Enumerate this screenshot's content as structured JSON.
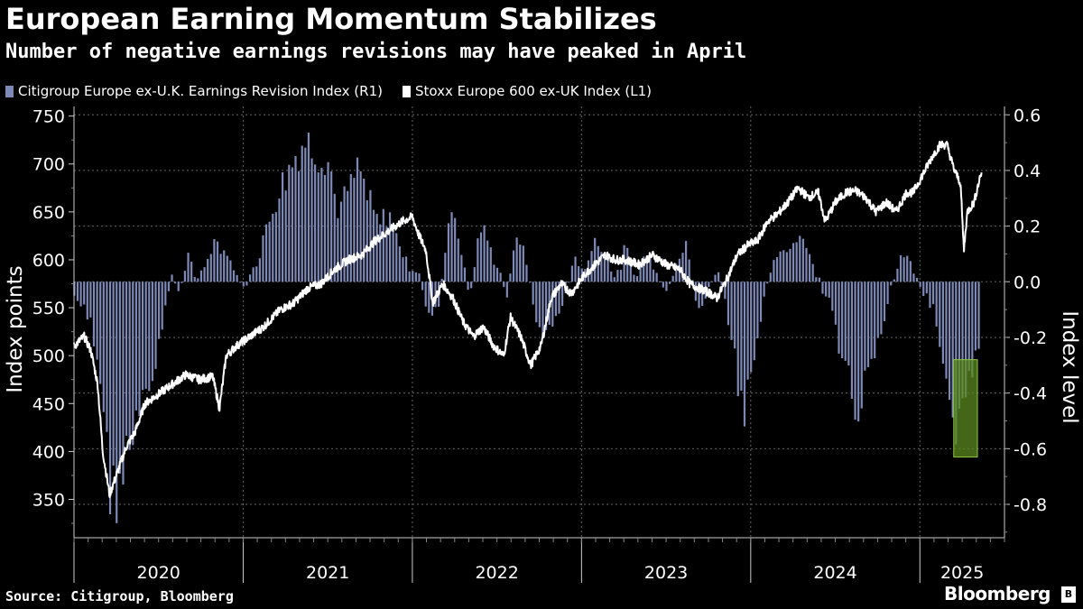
{
  "title": "European Earning Momentum Stabilizes",
  "subtitle": "Number of negative earnings revisions may have peaked in April",
  "source": "Source: Citigroup, Bloomberg",
  "brand": "Bloomberg",
  "brand_icon": "B",
  "colors": {
    "bars": "#7d8ab8",
    "line": "#ffffff",
    "highlight_fill": "#5a8a1e",
    "highlight_stroke": "#8dc63f",
    "grid": "#666666"
  },
  "chart_data": {
    "type": "bar+line",
    "series": [
      {
        "name": "Citigroup Europe ex-U.K. Earnings Revision Index (R1)",
        "type": "bar",
        "axis": "right"
      },
      {
        "name": "Stoxx Europe 600 ex-UK Index (L1)",
        "type": "line",
        "axis": "left"
      }
    ],
    "left_axis": {
      "label": "Index points",
      "ylim": [
        310,
        760
      ],
      "ticks": [
        350,
        400,
        450,
        500,
        550,
        600,
        650,
        700,
        750
      ]
    },
    "right_axis": {
      "label": "Index level",
      "ylim": [
        -0.92,
        0.63
      ],
      "ticks": [
        "0.6",
        "0.4",
        "0.2",
        "0.0",
        "-0.2",
        "-0.4",
        "-0.6",
        "-0.8"
      ],
      "tick_values": [
        0.6,
        0.4,
        0.2,
        0.0,
        -0.2,
        -0.4,
        -0.6,
        -0.8
      ]
    },
    "x_axis": {
      "start": 2020.0,
      "end": 2025.5,
      "year_labels": [
        "2020",
        "2021",
        "2022",
        "2023",
        "2024",
        "2025"
      ],
      "year_boundaries": [
        2021,
        2022,
        2023,
        2024,
        2025
      ]
    },
    "bar_anchors": [
      [
        2020.0,
        -0.05
      ],
      [
        2020.05,
        -0.1
      ],
      [
        2020.1,
        -0.15
      ],
      [
        2020.16,
        -0.35
      ],
      [
        2020.22,
        -0.78
      ],
      [
        2020.28,
        -0.7
      ],
      [
        2020.36,
        -0.55
      ],
      [
        2020.42,
        -0.45
      ],
      [
        2020.48,
        -0.3
      ],
      [
        2020.54,
        -0.1
      ],
      [
        2020.58,
        0.03
      ],
      [
        2020.62,
        -0.05
      ],
      [
        2020.68,
        0.12
      ],
      [
        2020.72,
        -0.02
      ],
      [
        2020.78,
        0.08
      ],
      [
        2020.84,
        0.15
      ],
      [
        2020.9,
        0.1
      ],
      [
        2020.96,
        0.02
      ],
      [
        2021.02,
        -0.02
      ],
      [
        2021.08,
        0.08
      ],
      [
        2021.14,
        0.2
      ],
      [
        2021.22,
        0.35
      ],
      [
        2021.3,
        0.45
      ],
      [
        2021.36,
        0.5
      ],
      [
        2021.44,
        0.48
      ],
      [
        2021.5,
        0.45
      ],
      [
        2021.56,
        0.25
      ],
      [
        2021.62,
        0.32
      ],
      [
        2021.68,
        0.4
      ],
      [
        2021.74,
        0.3
      ],
      [
        2021.8,
        0.2
      ],
      [
        2021.86,
        0.25
      ],
      [
        2021.92,
        0.15
      ],
      [
        2021.98,
        0.05
      ],
      [
        2022.04,
        0.02
      ],
      [
        2022.1,
        -0.12
      ],
      [
        2022.16,
        -0.08
      ],
      [
        2022.22,
        0.28
      ],
      [
        2022.28,
        0.15
      ],
      [
        2022.34,
        -0.05
      ],
      [
        2022.4,
        0.2
      ],
      [
        2022.46,
        0.12
      ],
      [
        2022.52,
        0.02
      ],
      [
        2022.56,
        -0.05
      ],
      [
        2022.62,
        0.18
      ],
      [
        2022.68,
        0.06
      ],
      [
        2022.72,
        -0.12
      ],
      [
        2022.78,
        -0.2
      ],
      [
        2022.84,
        -0.15
      ],
      [
        2022.9,
        -0.05
      ],
      [
        2022.96,
        0.08
      ],
      [
        2023.02,
        0.05
      ],
      [
        2023.08,
        0.15
      ],
      [
        2023.14,
        0.12
      ],
      [
        2023.2,
        0.0
      ],
      [
        2023.26,
        0.12
      ],
      [
        2023.32,
        0.02
      ],
      [
        2023.38,
        0.1
      ],
      [
        2023.44,
        0.05
      ],
      [
        2023.5,
        -0.05
      ],
      [
        2023.56,
        0.08
      ],
      [
        2023.62,
        0.15
      ],
      [
        2023.68,
        -0.1
      ],
      [
        2023.74,
        -0.05
      ],
      [
        2023.8,
        0.05
      ],
      [
        2023.86,
        -0.1
      ],
      [
        2023.92,
        -0.35
      ],
      [
        2023.96,
        -0.55
      ],
      [
        2024.02,
        -0.25
      ],
      [
        2024.08,
        -0.05
      ],
      [
        2024.14,
        0.08
      ],
      [
        2024.2,
        0.12
      ],
      [
        2024.26,
        0.15
      ],
      [
        2024.3,
        0.17
      ],
      [
        2024.36,
        0.08
      ],
      [
        2024.42,
        -0.02
      ],
      [
        2024.48,
        -0.1
      ],
      [
        2024.54,
        -0.3
      ],
      [
        2024.6,
        -0.4
      ],
      [
        2024.64,
        -0.45
      ],
      [
        2024.7,
        -0.3
      ],
      [
        2024.76,
        -0.2
      ],
      [
        2024.82,
        -0.05
      ],
      [
        2024.86,
        0.05
      ],
      [
        2024.92,
        0.1
      ],
      [
        2024.96,
        0.04
      ],
      [
        2025.02,
        -0.05
      ],
      [
        2025.08,
        -0.08
      ],
      [
        2025.12,
        -0.25
      ],
      [
        2025.18,
        -0.48
      ],
      [
        2025.22,
        -0.55
      ],
      [
        2025.26,
        -0.48
      ],
      [
        2025.3,
        -0.35
      ],
      [
        2025.34,
        -0.22
      ]
    ],
    "line_anchors": [
      [
        2020.0,
        510
      ],
      [
        2020.06,
        520
      ],
      [
        2020.1,
        505
      ],
      [
        2020.14,
        470
      ],
      [
        2020.17,
        400
      ],
      [
        2020.21,
        355
      ],
      [
        2020.26,
        380
      ],
      [
        2020.31,
        405
      ],
      [
        2020.36,
        420
      ],
      [
        2020.42,
        450
      ],
      [
        2020.5,
        460
      ],
      [
        2020.58,
        470
      ],
      [
        2020.66,
        480
      ],
      [
        2020.74,
        475
      ],
      [
        2020.82,
        478
      ],
      [
        2020.86,
        445
      ],
      [
        2020.9,
        500
      ],
      [
        2020.96,
        510
      ],
      [
        2021.04,
        520
      ],
      [
        2021.12,
        530
      ],
      [
        2021.22,
        548
      ],
      [
        2021.3,
        555
      ],
      [
        2021.38,
        570
      ],
      [
        2021.46,
        575
      ],
      [
        2021.54,
        590
      ],
      [
        2021.62,
        600
      ],
      [
        2021.7,
        605
      ],
      [
        2021.78,
        620
      ],
      [
        2021.86,
        630
      ],
      [
        2021.94,
        640
      ],
      [
        2022.0,
        645
      ],
      [
        2022.04,
        625
      ],
      [
        2022.08,
        610
      ],
      [
        2022.12,
        555
      ],
      [
        2022.18,
        575
      ],
      [
        2022.24,
        560
      ],
      [
        2022.3,
        535
      ],
      [
        2022.36,
        520
      ],
      [
        2022.42,
        530
      ],
      [
        2022.48,
        510
      ],
      [
        2022.54,
        500
      ],
      [
        2022.58,
        540
      ],
      [
        2022.64,
        520
      ],
      [
        2022.7,
        490
      ],
      [
        2022.76,
        510
      ],
      [
        2022.82,
        560
      ],
      [
        2022.88,
        575
      ],
      [
        2022.94,
        565
      ],
      [
        2023.02,
        585
      ],
      [
        2023.08,
        595
      ],
      [
        2023.14,
        605
      ],
      [
        2023.2,
        600
      ],
      [
        2023.26,
        600
      ],
      [
        2023.34,
        595
      ],
      [
        2023.42,
        605
      ],
      [
        2023.5,
        595
      ],
      [
        2023.58,
        590
      ],
      [
        2023.64,
        575
      ],
      [
        2023.7,
        570
      ],
      [
        2023.76,
        565
      ],
      [
        2023.8,
        560
      ],
      [
        2023.86,
        580
      ],
      [
        2023.92,
        605
      ],
      [
        2023.98,
        615
      ],
      [
        2024.04,
        620
      ],
      [
        2024.1,
        640
      ],
      [
        2024.16,
        648
      ],
      [
        2024.22,
        660
      ],
      [
        2024.28,
        675
      ],
      [
        2024.34,
        665
      ],
      [
        2024.4,
        670
      ],
      [
        2024.44,
        640
      ],
      [
        2024.5,
        660
      ],
      [
        2024.56,
        670
      ],
      [
        2024.62,
        672
      ],
      [
        2024.68,
        665
      ],
      [
        2024.74,
        650
      ],
      [
        2024.8,
        660
      ],
      [
        2024.86,
        650
      ],
      [
        2024.92,
        670
      ],
      [
        2024.96,
        670
      ],
      [
        2025.02,
        690
      ],
      [
        2025.08,
        710
      ],
      [
        2025.12,
        720
      ],
      [
        2025.16,
        720
      ],
      [
        2025.2,
        695
      ],
      [
        2025.24,
        680
      ],
      [
        2025.26,
        610
      ],
      [
        2025.28,
        650
      ],
      [
        2025.32,
        660
      ],
      [
        2025.36,
        690
      ]
    ],
    "annotation": {
      "type": "highlight-box",
      "x_range": [
        2025.2,
        2025.34
      ],
      "y_range_right": [
        -0.63,
        -0.28
      ]
    }
  }
}
